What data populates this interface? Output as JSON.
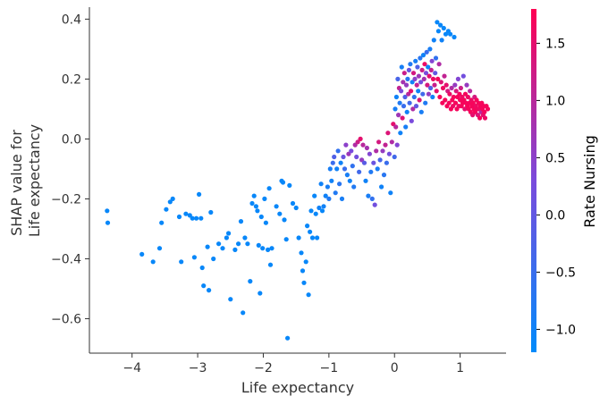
{
  "chart_data": {
    "type": "scatter",
    "xlabel": "Life expectancy",
    "ylabel_lines": [
      "SHAP value for",
      "Life expectancy"
    ],
    "colorbar_label": "Rate Nursing",
    "xlim": [
      -4.65,
      1.7
    ],
    "ylim": [
      -0.715,
      0.44
    ],
    "x_ticks": [
      -4,
      -3,
      -2,
      -1,
      0,
      1
    ],
    "x_tick_labels": [
      "−4",
      "−3",
      "−2",
      "−1",
      "0",
      "1"
    ],
    "y_ticks": [
      0.4,
      0.2,
      0.0,
      -0.2,
      -0.4,
      -0.6
    ],
    "y_tick_labels": [
      "0.4",
      "0.2",
      "0.0",
      "−0.2",
      "−0.4",
      "−0.6"
    ],
    "colorbar_range": [
      -1.2,
      1.8
    ],
    "colorbar_ticks": [
      1.5,
      1.0,
      0.5,
      0.0,
      -0.5,
      -1.0
    ],
    "colorbar_tick_labels": [
      "1.5",
      "1.0",
      "0.5",
      "0.0",
      "−0.5",
      "−1.0"
    ],
    "colors": {
      "low": "#008bfb",
      "mid": "#7a4bdc",
      "high": "#ff0052"
    },
    "points": [
      [
        -4.38,
        -0.24,
        -1.1
      ],
      [
        -4.37,
        -0.28,
        -1.1
      ],
      [
        -3.85,
        -0.385,
        -1.1
      ],
      [
        -3.68,
        -0.41,
        -1.1
      ],
      [
        -3.58,
        -0.365,
        -1.1
      ],
      [
        -3.55,
        -0.28,
        -1.1
      ],
      [
        -3.48,
        -0.235,
        -1.1
      ],
      [
        -3.42,
        -0.21,
        -1.1
      ],
      [
        -3.38,
        -0.2,
        -1.1
      ],
      [
        -3.28,
        -0.26,
        -1.1
      ],
      [
        -3.25,
        -0.41,
        -1.1
      ],
      [
        -3.18,
        -0.25,
        -1.1
      ],
      [
        -3.12,
        -0.255,
        -1.1
      ],
      [
        -3.08,
        -0.265,
        -1.1
      ],
      [
        -3.05,
        -0.395,
        -1.1
      ],
      [
        -3.02,
        -0.265,
        -1.1
      ],
      [
        -2.98,
        -0.185,
        -1.1
      ],
      [
        -2.95,
        -0.265,
        -1.1
      ],
      [
        -2.93,
        -0.43,
        -1.1
      ],
      [
        -2.91,
        -0.49,
        -1.1
      ],
      [
        -2.85,
        -0.36,
        -1.1
      ],
      [
        -2.83,
        -0.505,
        -1.1
      ],
      [
        -2.8,
        -0.245,
        -1.1
      ],
      [
        -2.76,
        -0.4,
        -1.1
      ],
      [
        -2.68,
        -0.35,
        -1.1
      ],
      [
        -2.62,
        -0.365,
        -1.1
      ],
      [
        -2.56,
        -0.33,
        -1.1
      ],
      [
        -2.53,
        -0.315,
        -1.1
      ],
      [
        -2.5,
        -0.535,
        -1.1
      ],
      [
        -2.43,
        -0.37,
        -1.1
      ],
      [
        -2.38,
        -0.35,
        -1.1
      ],
      [
        -2.34,
        -0.275,
        -1.1
      ],
      [
        -2.31,
        -0.58,
        -1.1
      ],
      [
        -2.28,
        -0.33,
        -1.1
      ],
      [
        -2.24,
        -0.35,
        -1.1
      ],
      [
        -2.2,
        -0.475,
        -1.1
      ],
      [
        -2.17,
        -0.215,
        -1.1
      ],
      [
        -2.14,
        -0.19,
        -1.1
      ],
      [
        -2.11,
        -0.225,
        -1.1
      ],
      [
        -2.09,
        -0.24,
        -1.1
      ],
      [
        -2.07,
        -0.355,
        -1.1
      ],
      [
        -2.05,
        -0.515,
        -1.1
      ],
      [
        -2.03,
        -0.26,
        -1.1
      ],
      [
        -2.01,
        -0.365,
        -1.1
      ],
      [
        -1.98,
        -0.2,
        -1.1
      ],
      [
        -1.96,
        -0.28,
        -1.1
      ],
      [
        -1.93,
        -0.37,
        -1.1
      ],
      [
        -1.91,
        -0.165,
        -1.1
      ],
      [
        -1.89,
        -0.42,
        -1.1
      ],
      [
        -1.87,
        -0.365,
        -1.1
      ],
      [
        -1.8,
        -0.225,
        -1.1
      ],
      [
        -1.75,
        -0.25,
        -1.1
      ],
      [
        -1.72,
        -0.14,
        -1.1
      ],
      [
        -1.7,
        -0.145,
        -1.1
      ],
      [
        -1.68,
        -0.27,
        -1.1
      ],
      [
        -1.65,
        -0.335,
        -1.1
      ],
      [
        -1.63,
        -0.665,
        -1.1
      ],
      [
        -1.6,
        -0.155,
        -1.1
      ],
      [
        -1.55,
        -0.215,
        -1.1
      ],
      [
        -1.5,
        -0.23,
        -1.1
      ],
      [
        -1.46,
        -0.33,
        -1.1
      ],
      [
        -1.42,
        -0.38,
        -1.1
      ],
      [
        -1.4,
        -0.44,
        -1.1
      ],
      [
        -1.38,
        -0.48,
        -1.1
      ],
      [
        -1.35,
        -0.41,
        -1.1
      ],
      [
        -1.33,
        -0.29,
        -1.1
      ],
      [
        -1.31,
        -0.52,
        -1.1
      ],
      [
        -1.29,
        -0.31,
        -1.1
      ],
      [
        -1.27,
        -0.24,
        -1.1
      ],
      [
        -1.25,
        -0.33,
        -1.1
      ],
      [
        -1.22,
        -0.19,
        -1.1
      ],
      [
        -1.2,
        -0.25,
        -1.1
      ],
      [
        -1.18,
        -0.33,
        -1.1
      ],
      [
        -1.15,
        -0.23,
        -1.0
      ],
      [
        -1.12,
        -0.15,
        -1.0
      ],
      [
        -1.1,
        -0.24,
        -1.1
      ],
      [
        -1.08,
        -0.225,
        -1.0
      ],
      [
        -1.05,
        -0.19,
        -1.0
      ],
      [
        -1.02,
        -0.16,
        -0.9
      ],
      [
        -1.0,
        -0.2,
        -0.8
      ],
      [
        -0.98,
        -0.1,
        -0.9
      ],
      [
        -0.96,
        -0.14,
        -1.0
      ],
      [
        -0.94,
        -0.08,
        -0.5
      ],
      [
        -0.92,
        -0.06,
        -0.2
      ],
      [
        -0.9,
        -0.18,
        -0.8
      ],
      [
        -0.88,
        -0.1,
        -1.0
      ],
      [
        -0.86,
        -0.04,
        -0.6
      ],
      [
        -0.84,
        -0.15,
        -0.7
      ],
      [
        -0.82,
        -0.08,
        -1.0
      ],
      [
        -0.8,
        -0.2,
        -0.9
      ],
      [
        -0.78,
        -0.06,
        0.1
      ],
      [
        -0.76,
        -0.1,
        -0.5
      ],
      [
        -0.74,
        -0.02,
        0.5
      ],
      [
        -0.72,
        -0.12,
        -0.9
      ],
      [
        -0.7,
        -0.05,
        0.7
      ],
      [
        -0.68,
        -0.14,
        -1.0
      ],
      [
        -0.66,
        -0.04,
        0.3
      ],
      [
        -0.64,
        -0.09,
        -0.6
      ],
      [
        -0.62,
        -0.16,
        -0.8
      ],
      [
        -0.6,
        -0.02,
        0.9
      ],
      [
        -0.58,
        -0.06,
        0.2
      ],
      [
        -0.56,
        -0.01,
        1.2
      ],
      [
        -0.54,
        -0.11,
        -0.4
      ],
      [
        -0.52,
        0.0,
        1.5
      ],
      [
        -0.5,
        -0.07,
        0.6
      ],
      [
        -0.48,
        -0.02,
        1.0
      ],
      [
        -0.46,
        -0.08,
        -0.1
      ],
      [
        -0.44,
        -0.14,
        -1.0
      ],
      [
        -0.42,
        -0.03,
        0.8
      ],
      [
        -0.4,
        -0.19,
        -0.9
      ],
      [
        -0.38,
        -0.05,
        0.4
      ],
      [
        -0.36,
        -0.11,
        -0.8
      ],
      [
        -0.34,
        -0.2,
        -0.6
      ],
      [
        -0.32,
        -0.08,
        0.1
      ],
      [
        -0.3,
        -0.22,
        0.2
      ],
      [
        -0.28,
        -0.04,
        0.9
      ],
      [
        -0.26,
        -0.1,
        -0.9
      ],
      [
        -0.24,
        -0.01,
        1.3
      ],
      [
        -0.22,
        -0.07,
        -0.3
      ],
      [
        -0.2,
        -0.16,
        -1.0
      ],
      [
        -0.18,
        -0.04,
        0.6
      ],
      [
        -0.16,
        -0.12,
        -0.7
      ],
      [
        -0.14,
        -0.02,
        1.1
      ],
      [
        -0.12,
        -0.08,
        -0.5
      ],
      [
        -0.1,
        0.02,
        1.4
      ],
      [
        -0.08,
        -0.05,
        0.2
      ],
      [
        -0.06,
        -0.18,
        -1.0
      ],
      [
        -0.04,
        -0.01,
        0.9
      ],
      [
        -0.02,
        0.05,
        1.5
      ],
      [
        0.0,
        -0.06,
        -0.4
      ],
      [
        0.01,
        0.1,
        -0.9
      ],
      [
        0.02,
        0.04,
        1.0
      ],
      [
        0.03,
        0.14,
        -1.0
      ],
      [
        0.04,
        -0.02,
        0.4
      ],
      [
        0.05,
        0.2,
        -0.3
      ],
      [
        0.06,
        0.08,
        0.7
      ],
      [
        0.07,
        0.17,
        1.1
      ],
      [
        0.08,
        0.12,
        -0.8
      ],
      [
        0.09,
        0.02,
        -1.0
      ],
      [
        0.1,
        0.16,
        0.3
      ],
      [
        0.11,
        0.24,
        -0.9
      ],
      [
        0.12,
        0.07,
        1.4
      ],
      [
        0.13,
        0.19,
        0.8
      ],
      [
        0.14,
        0.11,
        -0.5
      ],
      [
        0.15,
        0.22,
        1.2
      ],
      [
        0.16,
        0.14,
        -0.2
      ],
      [
        0.17,
        0.04,
        -0.9
      ],
      [
        0.18,
        0.18,
        0.6
      ],
      [
        0.19,
        0.09,
        -1.0
      ],
      [
        0.2,
        0.2,
        -0.7
      ],
      [
        0.21,
        0.15,
        1.0
      ],
      [
        0.22,
        0.23,
        0.1
      ],
      [
        0.23,
        0.12,
        -0.4
      ],
      [
        0.24,
        0.25,
        -0.8
      ],
      [
        0.25,
        0.16,
        1.5
      ],
      [
        0.26,
        0.06,
        0.3
      ],
      [
        0.27,
        0.19,
        -1.0
      ],
      [
        0.28,
        0.1,
        0.9
      ],
      [
        0.29,
        0.22,
        1.3
      ],
      [
        0.3,
        0.14,
        -0.6
      ],
      [
        0.31,
        0.2,
        0.5
      ],
      [
        0.32,
        0.26,
        -0.9
      ],
      [
        0.33,
        0.11,
        0.0
      ],
      [
        0.34,
        0.18,
        1.1
      ],
      [
        0.35,
        0.24,
        -0.2
      ],
      [
        0.36,
        0.16,
        -1.0
      ],
      [
        0.37,
        0.21,
        0.7
      ],
      [
        0.38,
        0.13,
        1.4
      ],
      [
        0.39,
        0.27,
        -0.7
      ],
      [
        0.4,
        0.19,
        0.2
      ],
      [
        0.41,
        0.09,
        -0.9
      ],
      [
        0.42,
        0.23,
        1.2
      ],
      [
        0.43,
        0.15,
        -0.4
      ],
      [
        0.44,
        0.28,
        -1.0
      ],
      [
        0.45,
        0.2,
        0.8
      ],
      [
        0.46,
        0.25,
        1.6
      ],
      [
        0.47,
        0.12,
        -0.8
      ],
      [
        0.48,
        0.22,
        0.3
      ],
      [
        0.49,
        0.29,
        -0.5
      ],
      [
        0.5,
        0.18,
        1.3
      ],
      [
        0.51,
        0.24,
        -1.0
      ],
      [
        0.52,
        0.15,
        0.6
      ],
      [
        0.53,
        0.21,
        1.5
      ],
      [
        0.54,
        0.3,
        -0.9
      ],
      [
        0.55,
        0.17,
        -0.2
      ],
      [
        0.56,
        0.23,
        1.1
      ],
      [
        0.57,
        0.26,
        0.4
      ],
      [
        0.58,
        0.14,
        -1.0
      ],
      [
        0.59,
        0.2,
        1.6
      ],
      [
        0.6,
        0.33,
        -1.0
      ],
      [
        0.61,
        0.18,
        1.2
      ],
      [
        0.62,
        0.22,
        0.0
      ],
      [
        0.63,
        0.27,
        -0.6
      ],
      [
        0.64,
        0.16,
        1.5
      ],
      [
        0.65,
        0.39,
        -1.1
      ],
      [
        0.66,
        0.2,
        1.7
      ],
      [
        0.67,
        0.36,
        -1.1
      ],
      [
        0.68,
        0.25,
        0.9
      ],
      [
        0.69,
        0.14,
        1.7
      ],
      [
        0.7,
        0.38,
        -1.1
      ],
      [
        0.71,
        0.19,
        1.4
      ],
      [
        0.72,
        0.33,
        -1.0
      ],
      [
        0.73,
        0.12,
        1.7
      ],
      [
        0.74,
        0.17,
        1.6
      ],
      [
        0.75,
        0.37,
        -1.1
      ],
      [
        0.76,
        0.21,
        1.1
      ],
      [
        0.77,
        0.13,
        1.7
      ],
      [
        0.78,
        0.35,
        -1.1
      ],
      [
        0.79,
        0.18,
        1.5
      ],
      [
        0.8,
        0.11,
        1.7
      ],
      [
        0.81,
        0.16,
        1.3
      ],
      [
        0.82,
        0.36,
        -1.1
      ],
      [
        0.83,
        0.12,
        1.7
      ],
      [
        0.84,
        0.15,
        1.6
      ],
      [
        0.85,
        0.35,
        -1.1
      ],
      [
        0.86,
        0.1,
        1.7
      ],
      [
        0.87,
        0.17,
        0.9
      ],
      [
        0.88,
        0.13,
        1.7
      ],
      [
        0.89,
        0.11,
        1.6
      ],
      [
        0.9,
        0.14,
        1.7
      ],
      [
        0.91,
        0.34,
        -1.1
      ],
      [
        0.92,
        0.18,
        0.6
      ],
      [
        0.93,
        0.12,
        1.7
      ],
      [
        0.94,
        0.16,
        1.4
      ],
      [
        0.95,
        0.1,
        1.7
      ],
      [
        0.96,
        0.14,
        1.7
      ],
      [
        0.97,
        0.2,
        0.4
      ],
      [
        0.98,
        0.11,
        1.6
      ],
      [
        0.99,
        0.15,
        1.7
      ],
      [
        1.0,
        0.13,
        1.7
      ],
      [
        1.01,
        0.17,
        1.2
      ],
      [
        1.02,
        0.11,
        1.7
      ],
      [
        1.03,
        0.14,
        1.6
      ],
      [
        1.04,
        0.12,
        1.7
      ],
      [
        1.05,
        0.21,
        0.2
      ],
      [
        1.06,
        0.13,
        1.7
      ],
      [
        1.07,
        0.1,
        1.5
      ],
      [
        1.08,
        0.15,
        1.7
      ],
      [
        1.09,
        0.12,
        1.7
      ],
      [
        1.1,
        0.18,
        0.6
      ],
      [
        1.11,
        0.11,
        1.7
      ],
      [
        1.12,
        0.14,
        1.6
      ],
      [
        1.13,
        0.1,
        1.7
      ],
      [
        1.14,
        0.12,
        1.7
      ],
      [
        1.15,
        0.16,
        1.0
      ],
      [
        1.16,
        0.09,
        1.7
      ],
      [
        1.17,
        0.13,
        1.6
      ],
      [
        1.18,
        0.11,
        1.7
      ],
      [
        1.19,
        0.08,
        1.5
      ],
      [
        1.2,
        0.12,
        1.7
      ],
      [
        1.21,
        0.1,
        1.7
      ],
      [
        1.22,
        0.14,
        1.3
      ],
      [
        1.23,
        0.09,
        1.7
      ],
      [
        1.24,
        0.11,
        1.6
      ],
      [
        1.25,
        0.13,
        1.7
      ],
      [
        1.26,
        0.1,
        1.7
      ],
      [
        1.27,
        0.08,
        1.4
      ],
      [
        1.28,
        0.12,
        1.7
      ],
      [
        1.29,
        0.1,
        1.6
      ],
      [
        1.3,
        0.07,
        1.7
      ],
      [
        1.31,
        0.11,
        1.7
      ],
      [
        1.32,
        0.09,
        1.0
      ],
      [
        1.33,
        0.12,
        1.7
      ],
      [
        1.34,
        0.1,
        1.7
      ],
      [
        1.35,
        0.08,
        1.5
      ],
      [
        1.36,
        0.11,
        1.7
      ],
      [
        1.37,
        0.09,
        1.7
      ],
      [
        1.38,
        0.07,
        1.6
      ],
      [
        1.4,
        0.11,
        1.7
      ],
      [
        1.42,
        0.1,
        1.7
      ]
    ]
  }
}
